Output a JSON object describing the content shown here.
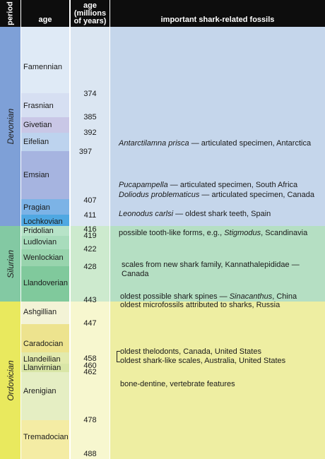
{
  "headers": {
    "period": "period",
    "age": "age",
    "age_mya": "age\n(millions\nof years)",
    "fossils": "important shark-related fossils"
  },
  "periods": [
    {
      "name": "Devonian"
    },
    {
      "name": "Silurian"
    },
    {
      "name": "Ordovician"
    }
  ],
  "ages": [
    {
      "name": "Famennian"
    },
    {
      "name": "Frasnian"
    },
    {
      "name": "Givetian"
    },
    {
      "name": "Eifelian"
    },
    {
      "name": "Emsian"
    },
    {
      "name": "Pragian"
    },
    {
      "name": "Lochkovian"
    },
    {
      "name": "Pridolian"
    },
    {
      "name": "Ludlovian"
    },
    {
      "name": "Wenlockian"
    },
    {
      "name": "Llandoverian"
    },
    {
      "name": "Ashgillian"
    },
    {
      "name": "Caradocian"
    },
    {
      "name": "Llandeilian"
    },
    {
      "name": "Llanvirnian"
    },
    {
      "name": "Arenigian"
    },
    {
      "name": "Tremadocian"
    }
  ],
  "boundaries": [
    "374",
    "385",
    "392",
    "397",
    "407",
    "411",
    "416",
    "419",
    "422",
    "428",
    "443",
    "447",
    "458",
    "460",
    "462",
    "478",
    "488"
  ],
  "fossils": [
    {
      "italic": "Antarctilamna prisca",
      "text": " — articulated specimen, Antarctica"
    },
    {
      "italic": "Pucapampella",
      "text": " — articulated specimen, South Africa"
    },
    {
      "italic": "Doliodus problematicus",
      "text": " — articulated specimen, Canada"
    },
    {
      "italic": "Leonodus carlsi",
      "text": " — oldest shark teeth, Spain"
    },
    {
      "prefix": "possible tooth-like forms, e.g., ",
      "italic": "Stigmodus",
      "text": ", Scandinavia"
    },
    {
      "text": "scales from new shark family, Kannathalepididae —"
    },
    {
      "text": "Canada"
    },
    {
      "prefix": "oldest possible shark spines — ",
      "italic": "Sinacanthus",
      "text": ", China"
    },
    {
      "text": "oldest microfossils attributed to sharks, Russia"
    },
    {
      "text": "oldest thelodonts, Canada, United States"
    },
    {
      "text": "oldest shark-like scales, Australia, United States"
    },
    {
      "text": "bone-dentine, vertebrate features"
    }
  ]
}
